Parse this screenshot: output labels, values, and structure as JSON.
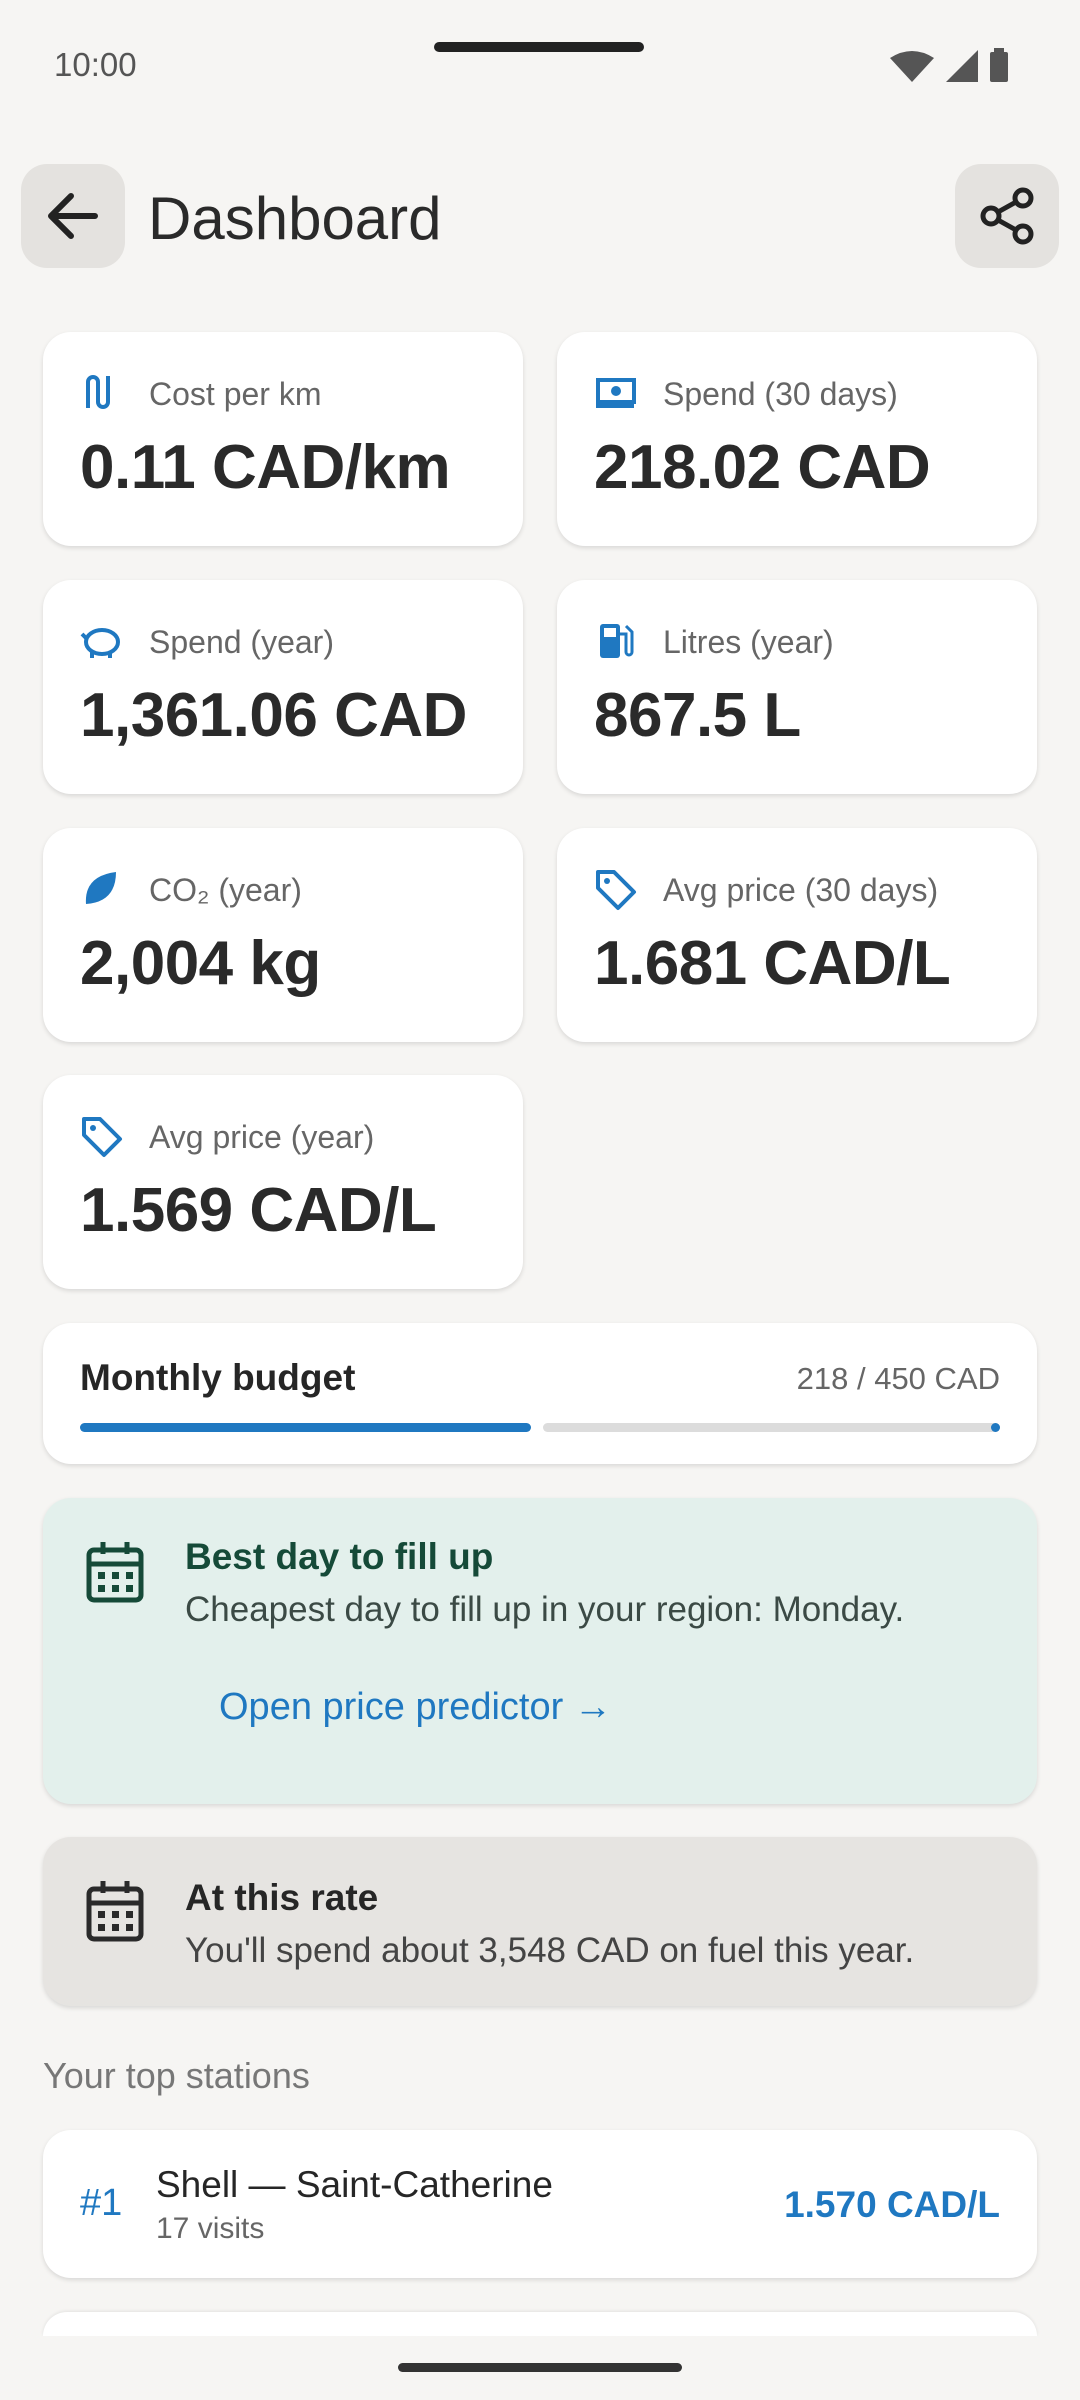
{
  "status_bar": {
    "time": "10:00"
  },
  "header": {
    "title": "Dashboard"
  },
  "stats": [
    {
      "label": "Cost per km",
      "value": "0.11 CAD/km"
    },
    {
      "label": "Spend (30 days)",
      "value": "218.02 CAD"
    },
    {
      "label": "Spend (year)",
      "value": "1,361.06 CAD"
    },
    {
      "label": "Litres (year)",
      "value": "867.5 L"
    },
    {
      "label": "CO₂ (year)",
      "value": "2,004 kg"
    },
    {
      "label": "Avg price (30 days)",
      "value": "1.681 CAD/L"
    },
    {
      "label": "Avg price (year)",
      "value": "1.569 CAD/L"
    }
  ],
  "budget": {
    "title": "Monthly budget",
    "amount": "218 / 450 CAD"
  },
  "tip": {
    "title": "Best day to fill up",
    "text": "Cheapest day to fill up in your region: Monday.",
    "link": "Open price predictor →"
  },
  "projection": {
    "title": "At this rate",
    "text": "You'll spend about 3,548 CAD on fuel this year."
  },
  "top_stations": {
    "heading": "Your top stations",
    "items": [
      {
        "rank": "#1",
        "name": "Shell — Saint-Catherine",
        "visits": "17 visits",
        "price": "1.570 CAD/L"
      }
    ]
  }
}
